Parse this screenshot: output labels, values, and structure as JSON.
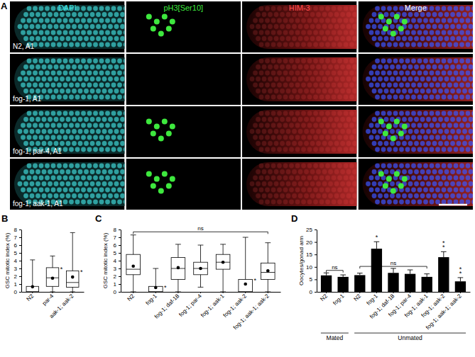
{
  "image_panel": {
    "panel_label": "A",
    "columns": [
      "DAPI",
      "pH3[Ser10]",
      "HIM-3",
      "Merge"
    ],
    "rows": [
      {
        "label": "N2, A1",
        "ph3_cells": 7
      },
      {
        "label": "fog-1, A1",
        "ph3_cells": 0
      },
      {
        "label": "fog-1; par-4, A1",
        "ph3_cells": 7
      },
      {
        "label": "fog-1; aak-1, A1",
        "ph3_cells": 7
      }
    ]
  },
  "chart_data": [
    {
      "type": "box",
      "panel_label": "B",
      "y_label": "GSC mitotic index (%)",
      "categories": [
        "N2",
        "par-4",
        "aak-1; aak-2"
      ],
      "min": [
        0,
        0,
        0
      ],
      "q1": [
        0,
        0.7,
        0.6
      ],
      "median": [
        0,
        1.8,
        1.2
      ],
      "q3": [
        0.7,
        3.1,
        2.7
      ],
      "max": [
        4.1,
        4.6,
        7.6
      ],
      "mean": [
        0.65,
        1.75,
        1.9
      ],
      "annotations": [
        null,
        "*",
        "*"
      ],
      "color": "#ffffff",
      "ylim": [
        0,
        8
      ],
      "yticks": [
        0,
        1,
        2,
        3,
        4,
        5,
        6,
        7,
        8
      ]
    },
    {
      "type": "box",
      "panel_label": "C",
      "y_label": "GSC mitotic index (%)",
      "categories": [
        "N2",
        "fog-1",
        "fog-1; daf-18",
        "fog-1; par-4",
        "fog-1; aak-1",
        "fog-1; aak-2",
        "fog-1; aak-1; aak-2"
      ],
      "min": [
        0,
        0,
        0,
        0.6,
        0,
        0,
        0
      ],
      "q1": [
        2.2,
        0,
        1.6,
        2.2,
        2.9,
        0,
        1.6
      ],
      "median": [
        2.9,
        0,
        3.0,
        3.0,
        3.8,
        0,
        2.5
      ],
      "q3": [
        4.8,
        0.7,
        4.4,
        3.8,
        4.8,
        1.6,
        3.7
      ],
      "max": [
        7.3,
        3.0,
        6.1,
        6.0,
        6.1,
        7.0,
        6.3
      ],
      "mean": [
        3.3,
        0.55,
        3.1,
        3.0,
        3.8,
        1.0,
        2.7
      ],
      "annotations": [
        null,
        "*",
        null,
        null,
        null,
        "*",
        null
      ],
      "color": "#ffffff",
      "brackets": [
        {
          "from": 0,
          "to": 6,
          "label": "ns",
          "y": 7.7
        }
      ],
      "ylim": [
        0,
        8
      ],
      "yticks": [
        0,
        1,
        2,
        3,
        4,
        5,
        6,
        7,
        8
      ]
    },
    {
      "type": "bar",
      "panel_label": "D",
      "y_label": "Oocytes/gonad arm",
      "categories": [
        "N2",
        "fog-1",
        "N2",
        "fog-1",
        "fog-1; daf-18",
        "fog-1; par-4",
        "fog-1; aak-1",
        "fog-1; aak-2",
        "fog-1; aak-1; aak-2"
      ],
      "values": [
        6.6,
        6.0,
        6.7,
        17.3,
        7.6,
        7.2,
        6.0,
        13.9,
        4.2
      ],
      "errors": [
        1.0,
        0.8,
        0.8,
        2.8,
        1.8,
        1.6,
        1.2,
        2.2,
        1.5
      ],
      "annotations": [
        null,
        null,
        null,
        "*",
        null,
        null,
        null,
        "**",
        "**"
      ],
      "brackets": [
        {
          "from": 0,
          "to": 1,
          "label": "ns",
          "y": 8.6
        },
        {
          "from": 2,
          "to": 6,
          "label": "ns",
          "y": 10.2
        }
      ],
      "groups": [
        {
          "label": "Mated",
          "from": 0,
          "to": 1
        },
        {
          "label": "Unmated",
          "from": 2,
          "to": 8
        }
      ],
      "color": "#000000",
      "ylim": [
        0,
        25
      ],
      "yticks": [
        0,
        5,
        10,
        15,
        20,
        25
      ]
    }
  ]
}
